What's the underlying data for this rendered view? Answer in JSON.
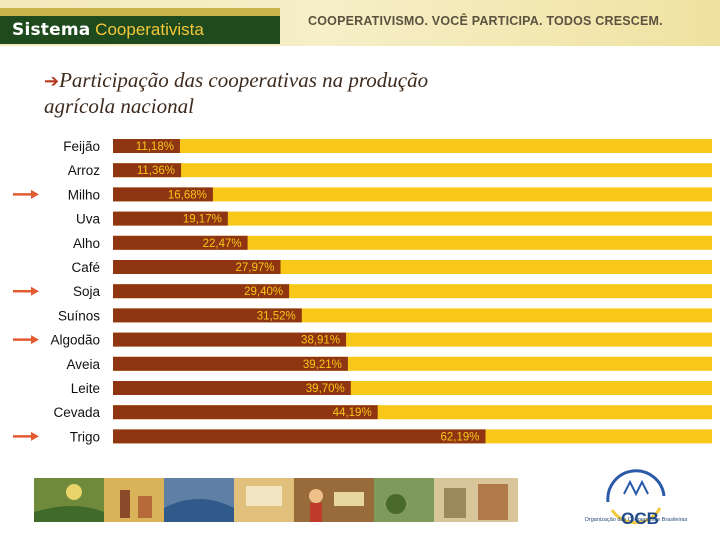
{
  "header": {
    "brand_word1": "Sistema",
    "brand_word2": "Cooperativista",
    "slogan": "COOPERATIVISMO. VOCÊ PARTICIPA. TODOS CRESCEM."
  },
  "heading": {
    "bullet_icon": "arrow-right-icon",
    "line1": "Participação das cooperativas na produção",
    "line2": "agrícola nacional"
  },
  "colors": {
    "bar_fill": "#8f3511",
    "track": "#f7c818",
    "label_text": "#f7c818",
    "pointer": "#e25b33",
    "brand_bg": "#1f4a1e",
    "brand_accent": "#f3c83a"
  },
  "chart_data": {
    "type": "bar",
    "orientation": "horizontal",
    "title": "Participação das cooperativas na produção agrícola nacional",
    "xlabel": "",
    "ylabel": "",
    "xlim": [
      0,
      100
    ],
    "categories": [
      "Feijão",
      "Arroz",
      "Milho",
      "Uva",
      "Alho",
      "Café",
      "Soja",
      "Suínos",
      "Algodão",
      "Aveia",
      "Leite",
      "Cevada",
      "Trigo"
    ],
    "values": [
      11.18,
      11.36,
      16.68,
      19.17,
      22.47,
      27.97,
      29.4,
      31.52,
      38.91,
      39.21,
      39.7,
      44.19,
      62.19
    ],
    "value_labels": [
      "11,18%",
      "11,36%",
      "16,68%",
      "19,17%",
      "22,47%",
      "27,97%",
      "29,40%",
      "31,52%",
      "38,91%",
      "39,21%",
      "39,70%",
      "44,19%",
      "62,19%"
    ],
    "highlighted": [
      "Milho",
      "Soja",
      "Algodão",
      "Trigo"
    ]
  },
  "footer": {
    "logo_text": "OCB",
    "logo_caption": "Organização das Cooperativas Brasileiras"
  }
}
